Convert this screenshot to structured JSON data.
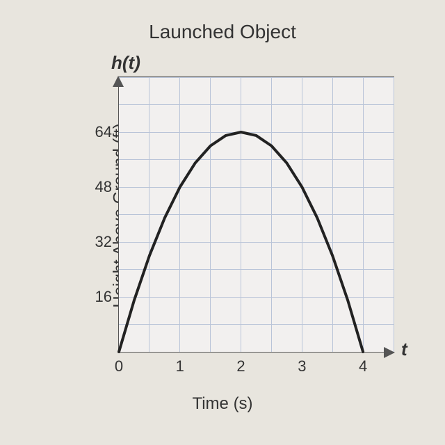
{
  "chart": {
    "type": "line",
    "title": "Launched Object",
    "y_func_label": "h(t)",
    "x_var_label": "t",
    "x_axis_label": "Time (s)",
    "y_axis_label": "Height Above Ground (ft)",
    "background_color": "#e8e5de",
    "plot_bg_color": "#f2f0ef",
    "grid_color": "#b9c4d8",
    "axis_color": "#555555",
    "curve_color": "#222222",
    "curve_width": 4,
    "title_fontsize": 28,
    "axis_label_fontsize": 24,
    "tick_fontsize": 22,
    "x_ticks": [
      0,
      1,
      2,
      3,
      4
    ],
    "y_ticks": [
      16,
      32,
      48,
      64
    ],
    "x_grid_step": 0.5,
    "y_grid_step": 8,
    "xlim": [
      0,
      4.5
    ],
    "ylim": [
      0,
      80
    ],
    "data_points": [
      {
        "t": 0.0,
        "h": 0
      },
      {
        "t": 0.25,
        "h": 15
      },
      {
        "t": 0.5,
        "h": 28
      },
      {
        "t": 0.75,
        "h": 39
      },
      {
        "t": 1.0,
        "h": 48
      },
      {
        "t": 1.25,
        "h": 55
      },
      {
        "t": 1.5,
        "h": 60
      },
      {
        "t": 1.75,
        "h": 63
      },
      {
        "t": 2.0,
        "h": 64
      },
      {
        "t": 2.25,
        "h": 63
      },
      {
        "t": 2.5,
        "h": 60
      },
      {
        "t": 2.75,
        "h": 55
      },
      {
        "t": 3.0,
        "h": 48
      },
      {
        "t": 3.25,
        "h": 39
      },
      {
        "t": 3.5,
        "h": 28
      },
      {
        "t": 3.75,
        "h": 15
      },
      {
        "t": 4.0,
        "h": 0
      }
    ]
  },
  "footer_text": ""
}
